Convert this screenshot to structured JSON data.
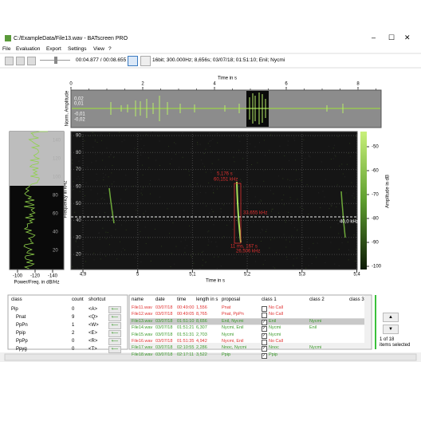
{
  "window": {
    "title": "C:/ExampleData/File13.wav - BATscreen PRO"
  },
  "menu": [
    "File",
    "Evaluation",
    "Export",
    "Settings",
    "View",
    "?"
  ],
  "toolbar": {
    "position": "00:04.877 / 00:08.655",
    "info": "16bit; 300.000Hz; 8,656s; 03/07/18; 01:51:10; Enil; Nycmi"
  },
  "overview": {
    "axis_title": "Time in s",
    "ticks": [
      "0",
      "2",
      "4",
      "6",
      "8"
    ],
    "amp_title": "Norm. Amplitude",
    "amp_ticks": [
      "0,02",
      "0,01",
      "-0,01",
      "-0,02"
    ]
  },
  "spectrogram": {
    "y_title": "Frequency in kHz",
    "y_ticks": [
      "90",
      "80",
      "70",
      "60",
      "50",
      "40",
      "30",
      "20"
    ],
    "x_title": "Time in s",
    "x_ticks": [
      "4,9",
      "5",
      "5,1",
      "5,2",
      "5,3",
      "5,4"
    ],
    "marker_label": "40,0 kHz",
    "annotations": [
      "5,176 s",
      "60,151 kHz",
      "33,655 kHz",
      "11 ms, 167 s",
      "26,506 kHz"
    ]
  },
  "colorbar": {
    "title": "Amplitude in dB",
    "ticks": [
      "-50",
      "-60",
      "-70",
      "-80",
      "-90",
      "-100"
    ]
  },
  "power": {
    "title": "Power/Freq. in dB/Hz",
    "x_ticks": [
      "-100",
      "-120",
      "-140"
    ],
    "y_ticks": [
      "140",
      "120",
      "100",
      "80",
      "60",
      "40",
      "20"
    ]
  },
  "class_table": {
    "columns": [
      "class",
      "count",
      "shortcut"
    ],
    "rows": [
      [
        "Pip",
        "0",
        "<A>"
      ],
      [
        "Pnat",
        "9",
        "<Q>"
      ],
      [
        "PpPn",
        "1",
        "<W>"
      ],
      [
        "Ppip",
        "2",
        "<E>"
      ],
      [
        "PpPp",
        "0",
        "<R>"
      ],
      [
        "Ppyg",
        "0",
        "<T>"
      ]
    ]
  },
  "file_table": {
    "columns": [
      "name",
      "date",
      "time",
      "length in s",
      "proposal",
      "class 1",
      "class 2",
      "class 3"
    ],
    "rows": [
      [
        "File11.wav",
        "03/07/18",
        "00:49:00",
        "1,556",
        "Pnat",
        "No Call",
        "",
        ""
      ],
      [
        "File12.wav",
        "03/07/18",
        "00:49:05",
        "8,765",
        "Pnat, PpPn",
        "No Call",
        "",
        ""
      ],
      [
        "File13.wav",
        "03/07/18",
        "01:51:10",
        "8,656",
        "Enil, Nycmi",
        "Enil",
        "Nycmi",
        ""
      ],
      [
        "File14.wav",
        "03/07/18",
        "01:51:21",
        "6,307",
        "Nycmi, Enil",
        "Nycmi",
        "Enil",
        ""
      ],
      [
        "File15.wav",
        "03/07/18",
        "01:51:31",
        "2,703",
        "Nycmi",
        "Nycmi",
        "",
        ""
      ],
      [
        "File16.wav",
        "03/07/18",
        "01:51:35",
        "4,942",
        "Nycmi, Enil",
        "No Call",
        "",
        ""
      ],
      [
        "File17.wav",
        "03/07/18",
        "02:10:55",
        "2,286",
        "Nnoc, Nycmi",
        "Nnoc",
        "Nycmi",
        ""
      ],
      [
        "File18.wav",
        "03/07/18",
        "02:17:11",
        "3,522",
        "Ppip",
        "Ppip",
        "",
        ""
      ]
    ]
  },
  "selection": {
    "count": "1 of 18",
    "label": "items selected"
  }
}
